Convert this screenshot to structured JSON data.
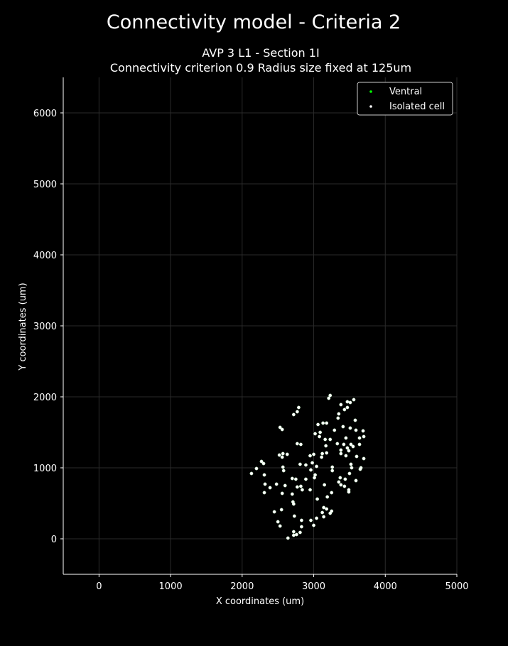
{
  "chart_data": {
    "type": "scatter",
    "suptitle": "Connectivity model - Criteria 2",
    "title_line1": "AVP 3 L1 - Section 1I",
    "title_line2": "Connectivity criterion 0.9  Radius size fixed at 125um",
    "xlabel": "X coordinates (um)",
    "ylabel": "Y coordinates (um)",
    "xlim": [
      -500,
      5000
    ],
    "ylim": [
      -500,
      6500
    ],
    "xticks": [
      0,
      1000,
      2000,
      3000,
      4000,
      5000
    ],
    "yticks": [
      0,
      1000,
      2000,
      3000,
      4000,
      5000,
      6000
    ],
    "grid": true,
    "legend_position": "top-right",
    "colors": {
      "background": "#000000",
      "axis": "#ffffff",
      "grid": "#2a2a2a",
      "ventral": "#00ff00",
      "isolated": "#ffffff"
    },
    "series": [
      {
        "name": "Ventral",
        "color": "#00ff00",
        "points": []
      },
      {
        "name": "Isolated cell",
        "color": "#ffffff",
        "points": [
          [
            3230,
            2020
          ],
          [
            3210,
            1980
          ],
          [
            3560,
            1960
          ],
          [
            3470,
            1930
          ],
          [
            3510,
            1920
          ],
          [
            3380,
            1890
          ],
          [
            3470,
            1850
          ],
          [
            3430,
            1820
          ],
          [
            3350,
            1760
          ],
          [
            3580,
            1670
          ],
          [
            3340,
            1700
          ],
          [
            2790,
            1850
          ],
          [
            2770,
            1790
          ],
          [
            2720,
            1750
          ],
          [
            3130,
            1630
          ],
          [
            3180,
            1630
          ],
          [
            3060,
            1610
          ],
          [
            2530,
            1570
          ],
          [
            2560,
            1540
          ],
          [
            3410,
            1580
          ],
          [
            3510,
            1560
          ],
          [
            3590,
            1530
          ],
          [
            3690,
            1520
          ],
          [
            3020,
            1480
          ],
          [
            3090,
            1500
          ],
          [
            3290,
            1530
          ],
          [
            3700,
            1440
          ],
          [
            3640,
            1420
          ],
          [
            3450,
            1420
          ],
          [
            3160,
            1400
          ],
          [
            3230,
            1400
          ],
          [
            3080,
            1440
          ],
          [
            2770,
            1340
          ],
          [
            2820,
            1330
          ],
          [
            3330,
            1340
          ],
          [
            3420,
            1330
          ],
          [
            3520,
            1330
          ],
          [
            3640,
            1330
          ],
          [
            3550,
            1300
          ],
          [
            3170,
            1310
          ],
          [
            3380,
            1250
          ],
          [
            3490,
            1240
          ],
          [
            3470,
            1280
          ],
          [
            3120,
            1200
          ],
          [
            3180,
            1210
          ],
          [
            3000,
            1190
          ],
          [
            2950,
            1170
          ],
          [
            3110,
            1150
          ],
          [
            3380,
            1200
          ],
          [
            3450,
            1170
          ],
          [
            3600,
            1160
          ],
          [
            3700,
            1130
          ],
          [
            2520,
            1180
          ],
          [
            2570,
            1200
          ],
          [
            2630,
            1190
          ],
          [
            2560,
            1150
          ],
          [
            2270,
            1090
          ],
          [
            2300,
            1060
          ],
          [
            2200,
            990
          ],
          [
            2130,
            920
          ],
          [
            2570,
            1010
          ],
          [
            2580,
            960
          ],
          [
            2810,
            1050
          ],
          [
            2890,
            1040
          ],
          [
            2980,
            1070
          ],
          [
            3040,
            1020
          ],
          [
            2960,
            970
          ],
          [
            3260,
            1010
          ],
          [
            3260,
            960
          ],
          [
            3520,
            1050
          ],
          [
            3530,
            1000
          ],
          [
            3660,
            1000
          ],
          [
            3650,
            980
          ],
          [
            3500,
            920
          ],
          [
            3020,
            900
          ],
          [
            3010,
            860
          ],
          [
            2890,
            840
          ],
          [
            2700,
            850
          ],
          [
            2750,
            840
          ],
          [
            2310,
            900
          ],
          [
            3370,
            860
          ],
          [
            3440,
            840
          ],
          [
            3350,
            800
          ],
          [
            3380,
            760
          ],
          [
            3430,
            740
          ],
          [
            3590,
            820
          ],
          [
            3150,
            760
          ],
          [
            2320,
            770
          ],
          [
            2390,
            720
          ],
          [
            2480,
            770
          ],
          [
            2600,
            750
          ],
          [
            2770,
            730
          ],
          [
            2820,
            740
          ],
          [
            2840,
            690
          ],
          [
            2950,
            690
          ],
          [
            3250,
            650
          ],
          [
            3490,
            690
          ],
          [
            3490,
            660
          ],
          [
            3190,
            590
          ],
          [
            3050,
            560
          ],
          [
            2310,
            650
          ],
          [
            2560,
            640
          ],
          [
            2700,
            630
          ],
          [
            2710,
            520
          ],
          [
            2720,
            490
          ],
          [
            3140,
            440
          ],
          [
            3180,
            420
          ],
          [
            3250,
            390
          ],
          [
            3230,
            360
          ],
          [
            3120,
            370
          ],
          [
            2450,
            380
          ],
          [
            2550,
            410
          ],
          [
            2730,
            320
          ],
          [
            2830,
            260
          ],
          [
            2960,
            260
          ],
          [
            3040,
            290
          ],
          [
            3140,
            310
          ],
          [
            2500,
            240
          ],
          [
            2530,
            180
          ],
          [
            2830,
            170
          ],
          [
            3000,
            190
          ],
          [
            2810,
            90
          ],
          [
            2720,
            100
          ],
          [
            2760,
            60
          ],
          [
            2720,
            50
          ],
          [
            2640,
            10
          ]
        ]
      }
    ]
  }
}
